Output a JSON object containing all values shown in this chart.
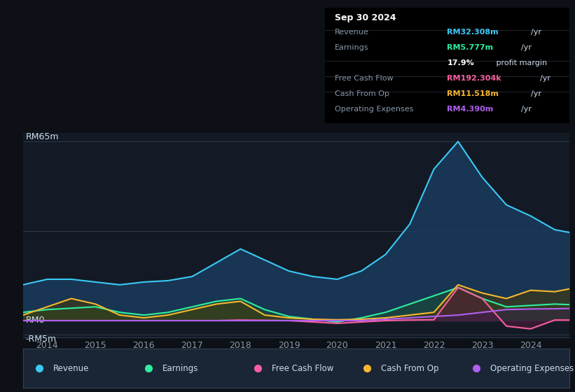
{
  "bg_color": "#0d1117",
  "plot_bg_color": "#131a25",
  "grid_color": "#2a3a4a",
  "title_box": {
    "date": "Sep 30 2024",
    "rows": [
      {
        "label": "Revenue",
        "value": "RM32.308m",
        "unit": "/yr",
        "value_color": "#3bc9f5"
      },
      {
        "label": "Earnings",
        "value": "RM5.777m",
        "unit": "/yr",
        "value_color": "#2feea0"
      },
      {
        "label": "",
        "value": "17.9%",
        "unit": " profit margin",
        "value_color": "#ffffff"
      },
      {
        "label": "Free Cash Flow",
        "value": "RM192.304k",
        "unit": "/yr",
        "value_color": "#f75fa0"
      },
      {
        "label": "Cash From Op",
        "value": "RM11.518m",
        "unit": "/yr",
        "value_color": "#f5b731"
      },
      {
        "label": "Operating Expenses",
        "value": "RM4.390m",
        "unit": "/yr",
        "value_color": "#b060f0"
      }
    ]
  },
  "ylabel_top": "RM65m",
  "ylabel_mid": "RM0",
  "ylabel_bot": "-RM5m",
  "ylim": [
    -6,
    68
  ],
  "legend": [
    {
      "label": "Revenue",
      "color": "#3bc9f5"
    },
    {
      "label": "Earnings",
      "color": "#2feea0"
    },
    {
      "label": "Free Cash Flow",
      "color": "#f75fa0"
    },
    {
      "label": "Cash From Op",
      "color": "#f5b731"
    },
    {
      "label": "Operating Expenses",
      "color": "#b060f0"
    }
  ],
  "x_ticks": [
    2014,
    2015,
    2016,
    2017,
    2018,
    2019,
    2020,
    2021,
    2022,
    2023,
    2024
  ],
  "xlim": [
    2013.5,
    2024.8
  ],
  "series": {
    "revenue": {
      "x": [
        2013.5,
        2014.0,
        2014.5,
        2015.0,
        2015.5,
        2016.0,
        2016.5,
        2017.0,
        2017.5,
        2018.0,
        2018.5,
        2019.0,
        2019.5,
        2020.0,
        2020.5,
        2021.0,
        2021.5,
        2022.0,
        2022.5,
        2023.0,
        2023.5,
        2024.0,
        2024.5,
        2024.8
      ],
      "y": [
        13,
        15,
        15,
        14,
        13,
        14,
        14.5,
        16,
        21,
        26,
        22,
        18,
        16,
        15,
        18,
        24,
        35,
        55,
        65,
        52,
        42,
        38,
        33,
        32
      ],
      "color": "#3bc9f5",
      "fill_color": "#1a3a5c",
      "fill_alpha": 0.85,
      "lw": 1.5
    },
    "earnings": {
      "x": [
        2013.5,
        2014.0,
        2014.5,
        2015.0,
        2015.5,
        2016.0,
        2016.5,
        2017.0,
        2017.5,
        2018.0,
        2018.5,
        2019.0,
        2019.5,
        2020.0,
        2020.5,
        2021.0,
        2021.5,
        2022.0,
        2022.5,
        2023.0,
        2023.5,
        2024.0,
        2024.5,
        2024.8
      ],
      "y": [
        3,
        4,
        4.5,
        5,
        3,
        2,
        3,
        5,
        7,
        8,
        4,
        1.5,
        0.5,
        -0.5,
        1,
        3,
        6,
        9,
        12,
        8,
        5,
        5.5,
        6,
        5.8
      ],
      "color": "#2feea0",
      "fill_color": "#1a4a3a",
      "fill_alpha": 0.7,
      "lw": 1.5
    },
    "free_cash_flow": {
      "x": [
        2013.5,
        2014.0,
        2014.5,
        2015.0,
        2015.5,
        2016.0,
        2016.5,
        2017.0,
        2017.5,
        2018.0,
        2018.5,
        2019.0,
        2019.5,
        2020.0,
        2020.5,
        2021.0,
        2021.5,
        2022.0,
        2022.5,
        2023.0,
        2023.5,
        2024.0,
        2024.5,
        2024.8
      ],
      "y": [
        0,
        0,
        0,
        0,
        0,
        0,
        0,
        0,
        0,
        0.2,
        0.1,
        0,
        -0.5,
        -1,
        -0.5,
        0,
        0.2,
        0.3,
        12,
        8,
        -2,
        -3,
        0.2,
        0.19
      ],
      "color": "#f75fa0",
      "fill_color": "#5a1a3a",
      "fill_alpha": 0.5,
      "lw": 1.5
    },
    "cash_from_op": {
      "x": [
        2013.5,
        2014.0,
        2014.5,
        2015.0,
        2015.5,
        2016.0,
        2016.5,
        2017.0,
        2017.5,
        2018.0,
        2018.5,
        2019.0,
        2019.5,
        2020.0,
        2020.5,
        2021.0,
        2021.5,
        2022.0,
        2022.5,
        2023.0,
        2023.5,
        2024.0,
        2024.5,
        2024.8
      ],
      "y": [
        2,
        5,
        8,
        6,
        2,
        1,
        2,
        4,
        6,
        7,
        2,
        1,
        0.5,
        0.3,
        0.5,
        1,
        2,
        3,
        13,
        10,
        8,
        11,
        10.5,
        11.5
      ],
      "color": "#f5b731",
      "fill_color": "#4a3a00",
      "fill_alpha": 0.5,
      "lw": 1.5
    },
    "operating_expenses": {
      "x": [
        2013.5,
        2014.0,
        2014.5,
        2015.0,
        2015.5,
        2016.0,
        2016.5,
        2017.0,
        2017.5,
        2018.0,
        2018.5,
        2019.0,
        2019.5,
        2020.0,
        2020.5,
        2021.0,
        2021.5,
        2022.0,
        2022.5,
        2023.0,
        2023.5,
        2024.0,
        2024.5,
        2024.8
      ],
      "y": [
        0,
        0,
        0,
        0,
        0,
        0,
        0,
        0,
        0,
        0,
        0,
        0,
        0,
        0,
        0,
        0.5,
        1,
        1.5,
        2,
        3,
        4,
        4.2,
        4.3,
        4.4
      ],
      "color": "#b060f0",
      "fill_color": "#3a1a5c",
      "fill_alpha": 0.4,
      "lw": 1.5
    }
  }
}
